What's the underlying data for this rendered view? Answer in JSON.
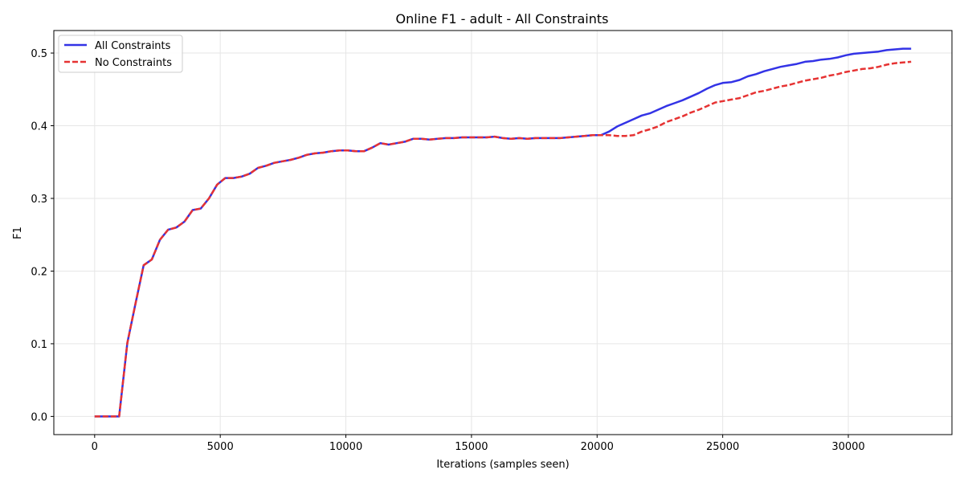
{
  "chart_data": {
    "type": "line",
    "title": "Online F1 - adult - All Constraints",
    "xlabel": "Iterations (samples seen)",
    "ylabel": "F1",
    "xlim": [
      -1625,
      34125
    ],
    "ylim": [
      -0.025,
      0.531
    ],
    "xticks": [
      0,
      5000,
      10000,
      15000,
      20000,
      25000,
      30000
    ],
    "xtick_labels": [
      "0",
      "5000",
      "10000",
      "15000",
      "20000",
      "25000",
      "30000"
    ],
    "yticks": [
      0.0,
      0.1,
      0.2,
      0.3,
      0.4,
      0.5
    ],
    "ytick_labels": [
      "0.0",
      "0.1",
      "0.2",
      "0.3",
      "0.4",
      "0.5"
    ],
    "grid": true,
    "legend_position": "upper-left",
    "series": [
      {
        "name": "All Constraints",
        "color": "#3333e6",
        "style": "solid",
        "points": [
          [
            0,
            0.0
          ],
          [
            325,
            0.0
          ],
          [
            650,
            0.0
          ],
          [
            975,
            0.0
          ],
          [
            1300,
            0.101
          ],
          [
            1625,
            0.155
          ],
          [
            1950,
            0.208
          ],
          [
            2275,
            0.216
          ],
          [
            2600,
            0.243
          ],
          [
            2925,
            0.257
          ],
          [
            3250,
            0.26
          ],
          [
            3575,
            0.268
          ],
          [
            3900,
            0.284
          ],
          [
            4225,
            0.286
          ],
          [
            4550,
            0.3
          ],
          [
            4875,
            0.319
          ],
          [
            5200,
            0.328
          ],
          [
            5525,
            0.328
          ],
          [
            5850,
            0.33
          ],
          [
            6175,
            0.334
          ],
          [
            6500,
            0.342
          ],
          [
            6825,
            0.345
          ],
          [
            7150,
            0.349
          ],
          [
            7475,
            0.351
          ],
          [
            7800,
            0.353
          ],
          [
            8125,
            0.356
          ],
          [
            8450,
            0.36
          ],
          [
            8775,
            0.362
          ],
          [
            9100,
            0.363
          ],
          [
            9425,
            0.365
          ],
          [
            9750,
            0.366
          ],
          [
            10075,
            0.366
          ],
          [
            10400,
            0.365
          ],
          [
            10725,
            0.365
          ],
          [
            11050,
            0.37
          ],
          [
            11375,
            0.376
          ],
          [
            11700,
            0.374
          ],
          [
            12025,
            0.376
          ],
          [
            12350,
            0.378
          ],
          [
            12675,
            0.382
          ],
          [
            13000,
            0.382
          ],
          [
            13325,
            0.381
          ],
          [
            13650,
            0.382
          ],
          [
            13975,
            0.383
          ],
          [
            14300,
            0.383
          ],
          [
            14625,
            0.384
          ],
          [
            14950,
            0.384
          ],
          [
            15275,
            0.384
          ],
          [
            15600,
            0.384
          ],
          [
            15925,
            0.385
          ],
          [
            16250,
            0.383
          ],
          [
            16575,
            0.382
          ],
          [
            16900,
            0.383
          ],
          [
            17225,
            0.382
          ],
          [
            17550,
            0.383
          ],
          [
            17875,
            0.383
          ],
          [
            18200,
            0.383
          ],
          [
            18525,
            0.383
          ],
          [
            18850,
            0.384
          ],
          [
            19175,
            0.385
          ],
          [
            19500,
            0.386
          ],
          [
            19825,
            0.387
          ],
          [
            20150,
            0.387
          ],
          [
            20475,
            0.392
          ],
          [
            20800,
            0.399
          ],
          [
            21125,
            0.404
          ],
          [
            21450,
            0.409
          ],
          [
            21775,
            0.414
          ],
          [
            22100,
            0.417
          ],
          [
            22425,
            0.422
          ],
          [
            22750,
            0.427
          ],
          [
            23075,
            0.431
          ],
          [
            23400,
            0.435
          ],
          [
            23725,
            0.44
          ],
          [
            24050,
            0.445
          ],
          [
            24375,
            0.451
          ],
          [
            24700,
            0.456
          ],
          [
            25025,
            0.459
          ],
          [
            25350,
            0.46
          ],
          [
            25675,
            0.463
          ],
          [
            26000,
            0.468
          ],
          [
            26325,
            0.471
          ],
          [
            26650,
            0.475
          ],
          [
            26975,
            0.478
          ],
          [
            27300,
            0.481
          ],
          [
            27625,
            0.483
          ],
          [
            27950,
            0.485
          ],
          [
            28275,
            0.488
          ],
          [
            28600,
            0.489
          ],
          [
            28925,
            0.491
          ],
          [
            29250,
            0.492
          ],
          [
            29575,
            0.494
          ],
          [
            29900,
            0.497
          ],
          [
            30225,
            0.499
          ],
          [
            30550,
            0.5
          ],
          [
            30875,
            0.501
          ],
          [
            31200,
            0.502
          ],
          [
            31525,
            0.504
          ],
          [
            31850,
            0.505
          ],
          [
            32175,
            0.506
          ],
          [
            32500,
            0.506
          ]
        ]
      },
      {
        "name": "No Constraints",
        "color": "#e63333",
        "style": "dashed",
        "points": [
          [
            0,
            0.0
          ],
          [
            325,
            0.0
          ],
          [
            650,
            0.0
          ],
          [
            975,
            0.0
          ],
          [
            1300,
            0.101
          ],
          [
            1625,
            0.155
          ],
          [
            1950,
            0.208
          ],
          [
            2275,
            0.216
          ],
          [
            2600,
            0.243
          ],
          [
            2925,
            0.257
          ],
          [
            3250,
            0.26
          ],
          [
            3575,
            0.268
          ],
          [
            3900,
            0.284
          ],
          [
            4225,
            0.286
          ],
          [
            4550,
            0.3
          ],
          [
            4875,
            0.319
          ],
          [
            5200,
            0.328
          ],
          [
            5525,
            0.328
          ],
          [
            5850,
            0.33
          ],
          [
            6175,
            0.334
          ],
          [
            6500,
            0.342
          ],
          [
            6825,
            0.345
          ],
          [
            7150,
            0.349
          ],
          [
            7475,
            0.351
          ],
          [
            7800,
            0.353
          ],
          [
            8125,
            0.356
          ],
          [
            8450,
            0.36
          ],
          [
            8775,
            0.362
          ],
          [
            9100,
            0.363
          ],
          [
            9425,
            0.365
          ],
          [
            9750,
            0.366
          ],
          [
            10075,
            0.366
          ],
          [
            10400,
            0.365
          ],
          [
            10725,
            0.365
          ],
          [
            11050,
            0.37
          ],
          [
            11375,
            0.376
          ],
          [
            11700,
            0.374
          ],
          [
            12025,
            0.376
          ],
          [
            12350,
            0.378
          ],
          [
            12675,
            0.382
          ],
          [
            13000,
            0.382
          ],
          [
            13325,
            0.381
          ],
          [
            13650,
            0.382
          ],
          [
            13975,
            0.383
          ],
          [
            14300,
            0.383
          ],
          [
            14625,
            0.384
          ],
          [
            14950,
            0.384
          ],
          [
            15275,
            0.384
          ],
          [
            15600,
            0.384
          ],
          [
            15925,
            0.385
          ],
          [
            16250,
            0.383
          ],
          [
            16575,
            0.382
          ],
          [
            16900,
            0.383
          ],
          [
            17225,
            0.382
          ],
          [
            17550,
            0.383
          ],
          [
            17875,
            0.383
          ],
          [
            18200,
            0.383
          ],
          [
            18525,
            0.383
          ],
          [
            18850,
            0.384
          ],
          [
            19175,
            0.385
          ],
          [
            19500,
            0.386
          ],
          [
            19825,
            0.387
          ],
          [
            20150,
            0.387
          ],
          [
            20475,
            0.387
          ],
          [
            20800,
            0.386
          ],
          [
            21125,
            0.386
          ],
          [
            21450,
            0.387
          ],
          [
            21775,
            0.392
          ],
          [
            22100,
            0.395
          ],
          [
            22425,
            0.399
          ],
          [
            22750,
            0.405
          ],
          [
            23075,
            0.409
          ],
          [
            23400,
            0.413
          ],
          [
            23725,
            0.418
          ],
          [
            24050,
            0.422
          ],
          [
            24375,
            0.427
          ],
          [
            24700,
            0.432
          ],
          [
            25025,
            0.434
          ],
          [
            25350,
            0.436
          ],
          [
            25675,
            0.438
          ],
          [
            26000,
            0.442
          ],
          [
            26325,
            0.446
          ],
          [
            26650,
            0.448
          ],
          [
            26975,
            0.451
          ],
          [
            27300,
            0.454
          ],
          [
            27625,
            0.456
          ],
          [
            27950,
            0.459
          ],
          [
            28275,
            0.462
          ],
          [
            28600,
            0.464
          ],
          [
            28925,
            0.466
          ],
          [
            29250,
            0.469
          ],
          [
            29575,
            0.471
          ],
          [
            29900,
            0.474
          ],
          [
            30225,
            0.476
          ],
          [
            30550,
            0.478
          ],
          [
            30875,
            0.479
          ],
          [
            31200,
            0.481
          ],
          [
            31525,
            0.484
          ],
          [
            31850,
            0.486
          ],
          [
            32175,
            0.487
          ],
          [
            32500,
            0.488
          ]
        ]
      }
    ]
  }
}
